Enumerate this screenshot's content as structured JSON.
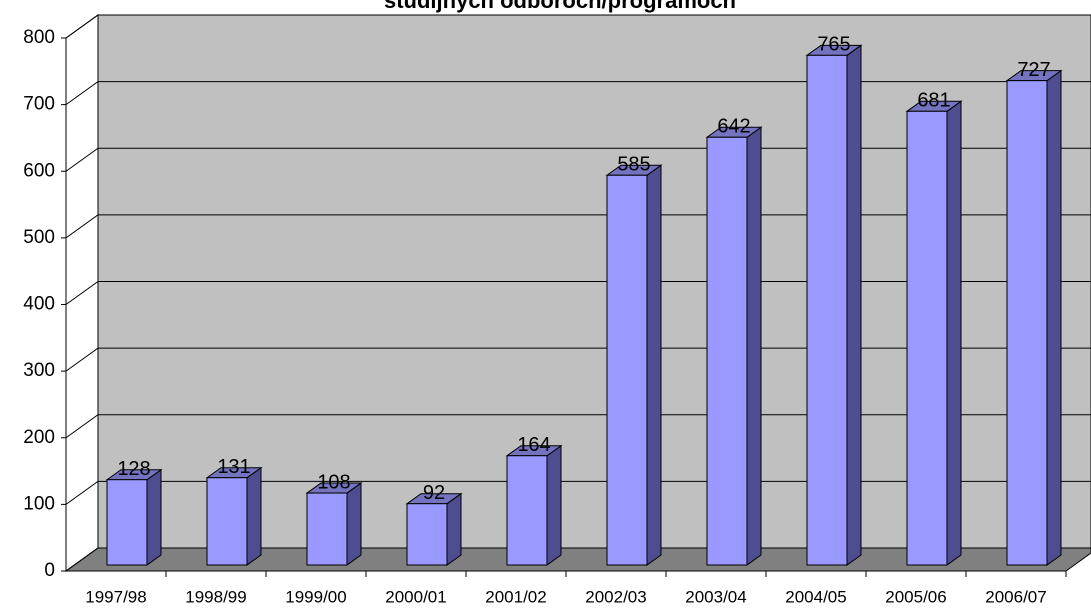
{
  "chart_data": {
    "type": "bar",
    "title": "studijnych odboroch/programoch",
    "categories": [
      "1997/98",
      "1998/99",
      "1999/00",
      "2000/01",
      "2001/02",
      "2002/03",
      "2003/04",
      "2004/05",
      "2005/06",
      "2006/07"
    ],
    "values": [
      128,
      131,
      108,
      92,
      164,
      585,
      642,
      765,
      681,
      727
    ],
    "color": "#9999ff",
    "ylim": [
      0,
      800
    ],
    "yticks": [
      0,
      100,
      200,
      300,
      400,
      500,
      600,
      700,
      800
    ],
    "grid": true
  }
}
